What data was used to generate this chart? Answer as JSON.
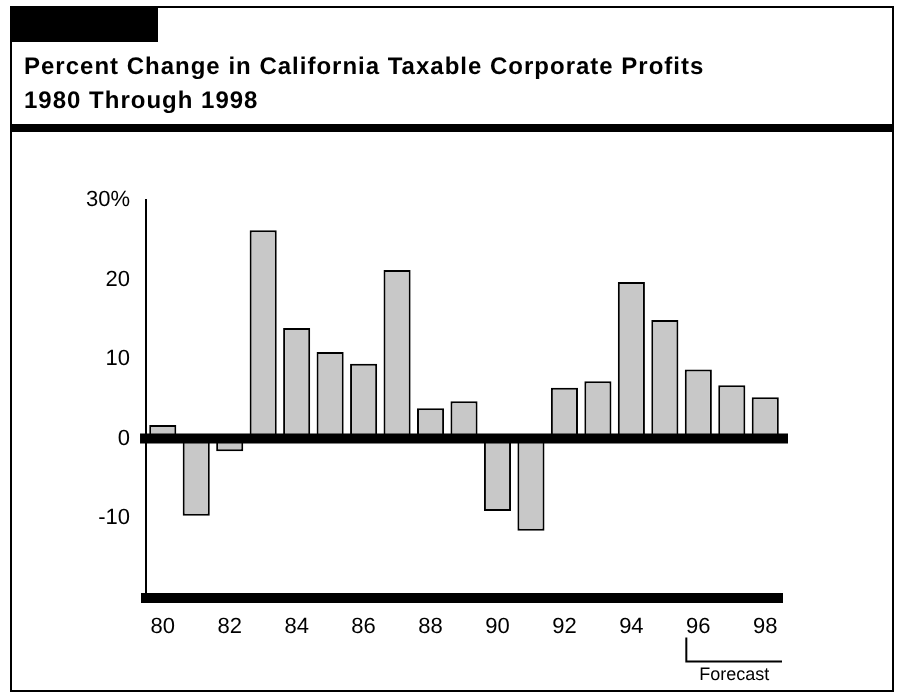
{
  "chart_data": {
    "type": "bar",
    "title": "Percent Change in California Taxable Corporate Profits\n1980 Through 1998",
    "categories": [
      "80",
      null,
      "82",
      null,
      "84",
      null,
      "86",
      null,
      "88",
      null,
      "90",
      null,
      "92",
      null,
      "94",
      null,
      "96",
      null,
      "98"
    ],
    "values": [
      1.7,
      -9.7,
      -1.6,
      26.2,
      13.9,
      10.9,
      9.4,
      21.2,
      3.8,
      4.7,
      -9.1,
      -11.6,
      6.4,
      7.2,
      19.7,
      14.9,
      8.7,
      6.7,
      5.2
    ],
    "color": "#c8c8c8",
    "ylim": [
      -20,
      30
    ],
    "yticks": [
      {
        "value": -20,
        "label": null
      },
      {
        "value": -10,
        "label": "-10"
      },
      {
        "value": 0,
        "label": "0"
      },
      {
        "value": 10,
        "label": "10"
      },
      {
        "value": 20,
        "label": "20"
      },
      {
        "value": 30,
        "label": "30%"
      }
    ],
    "ref_lines": [
      {
        "axis": "y",
        "value": 0,
        "color": "#000000"
      }
    ],
    "annotations": [
      "Forecast"
    ],
    "grid": false,
    "legend": false
  }
}
